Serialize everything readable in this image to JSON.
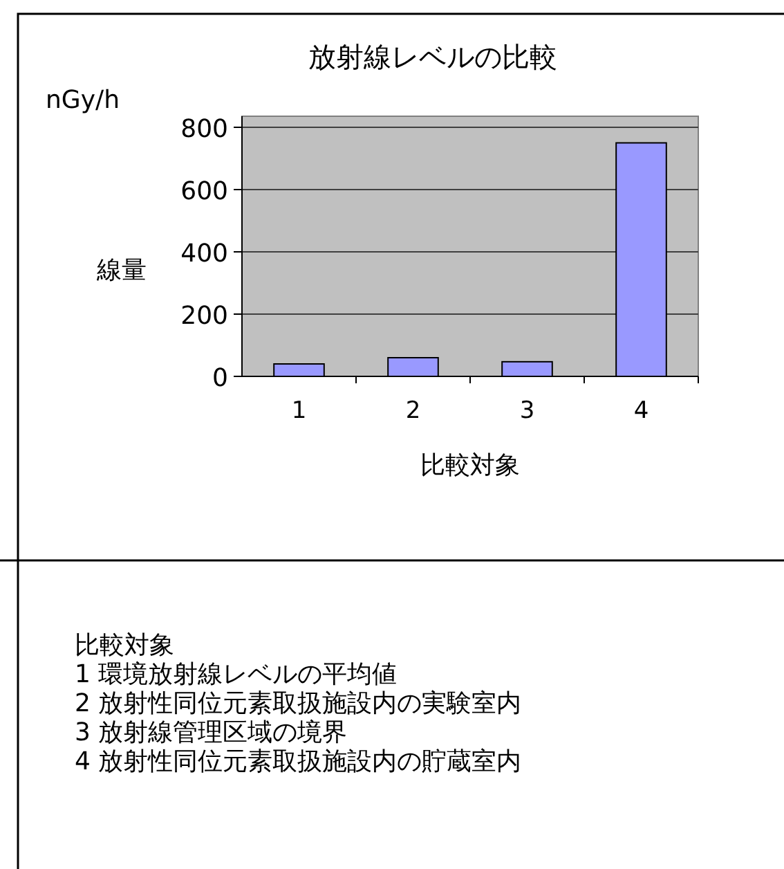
{
  "chart_data": {
    "type": "bar",
    "title": "放射線レベルの比較",
    "xlabel": "比較対象",
    "ylabel": "線量",
    "categories": [
      "1",
      "2",
      "3",
      "4"
    ],
    "values": [
      40,
      60,
      47,
      750
    ],
    "color": "#9999ff",
    "ylim": [
      0,
      800
    ],
    "yticks": [
      0,
      200,
      400,
      600,
      800
    ],
    "grid": "y",
    "annotations": [
      "nGy/h",
      "比較対象",
      "1  環境放射線レベルの平均値",
      "2  放射性同位元素取扱施設内の実験室内",
      "3  放射線管理区域の境界",
      "4 放射性同位元素取扱施設内の貯蔵室内"
    ]
  }
}
